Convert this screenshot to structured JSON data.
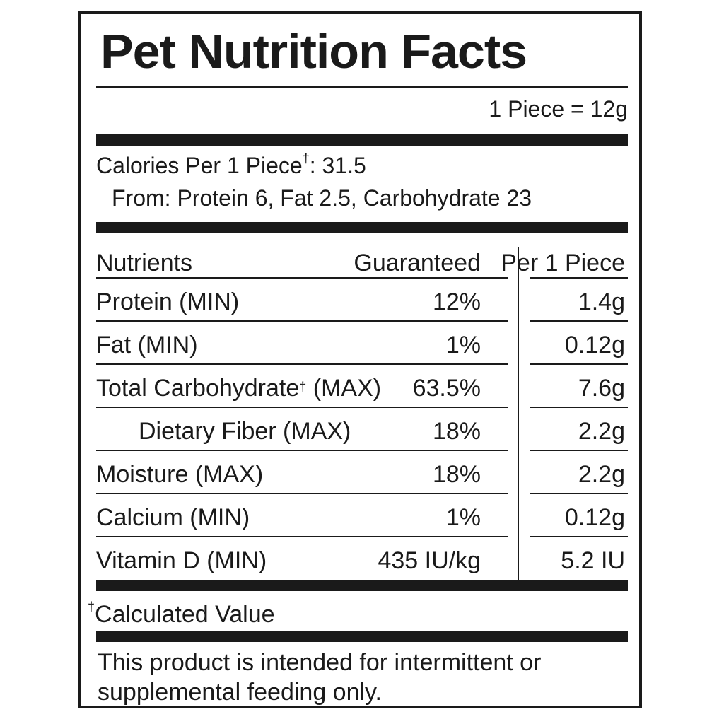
{
  "title": "Pet Nutrition Facts",
  "serving": "1 Piece = 12g",
  "calories": {
    "label": "Calories Per 1 Piece",
    "dagger": "†",
    "value": ": 31.5",
    "from": "From: Protein 6, Fat 2.5, Carbohydrate 23"
  },
  "table": {
    "headers": {
      "nutrients": "Nutrients",
      "guaranteed": "Guaranteed",
      "per_piece": "Per 1 Piece"
    },
    "rows": [
      {
        "name": "Protein (MIN)",
        "guaranteed": "12%",
        "per_piece": "1.4g"
      },
      {
        "name": "Fat (MIN)",
        "guaranteed": "1%",
        "per_piece": "0.12g"
      },
      {
        "name": "Total Carbohydrate",
        "dagger": "†",
        "name_suffix": " (MAX)",
        "guaranteed": "63.5%",
        "per_piece": "7.6g"
      },
      {
        "name": "Dietary Fiber (MAX)",
        "guaranteed": "18%",
        "per_piece": "2.2g"
      },
      {
        "name": "Moisture (MAX)",
        "guaranteed": "18%",
        "per_piece": "2.2g"
      },
      {
        "name": "Calcium (MIN)",
        "guaranteed": "1%",
        "per_piece": "0.12g"
      },
      {
        "name": "Vitamin D (MIN)",
        "guaranteed": "435 IU/kg",
        "per_piece": "5.2 IU"
      }
    ]
  },
  "footnote": {
    "dagger": "†",
    "text": "Calculated Value"
  },
  "disclaimer": "This product is intended for intermittent or supplemental feeding only."
}
